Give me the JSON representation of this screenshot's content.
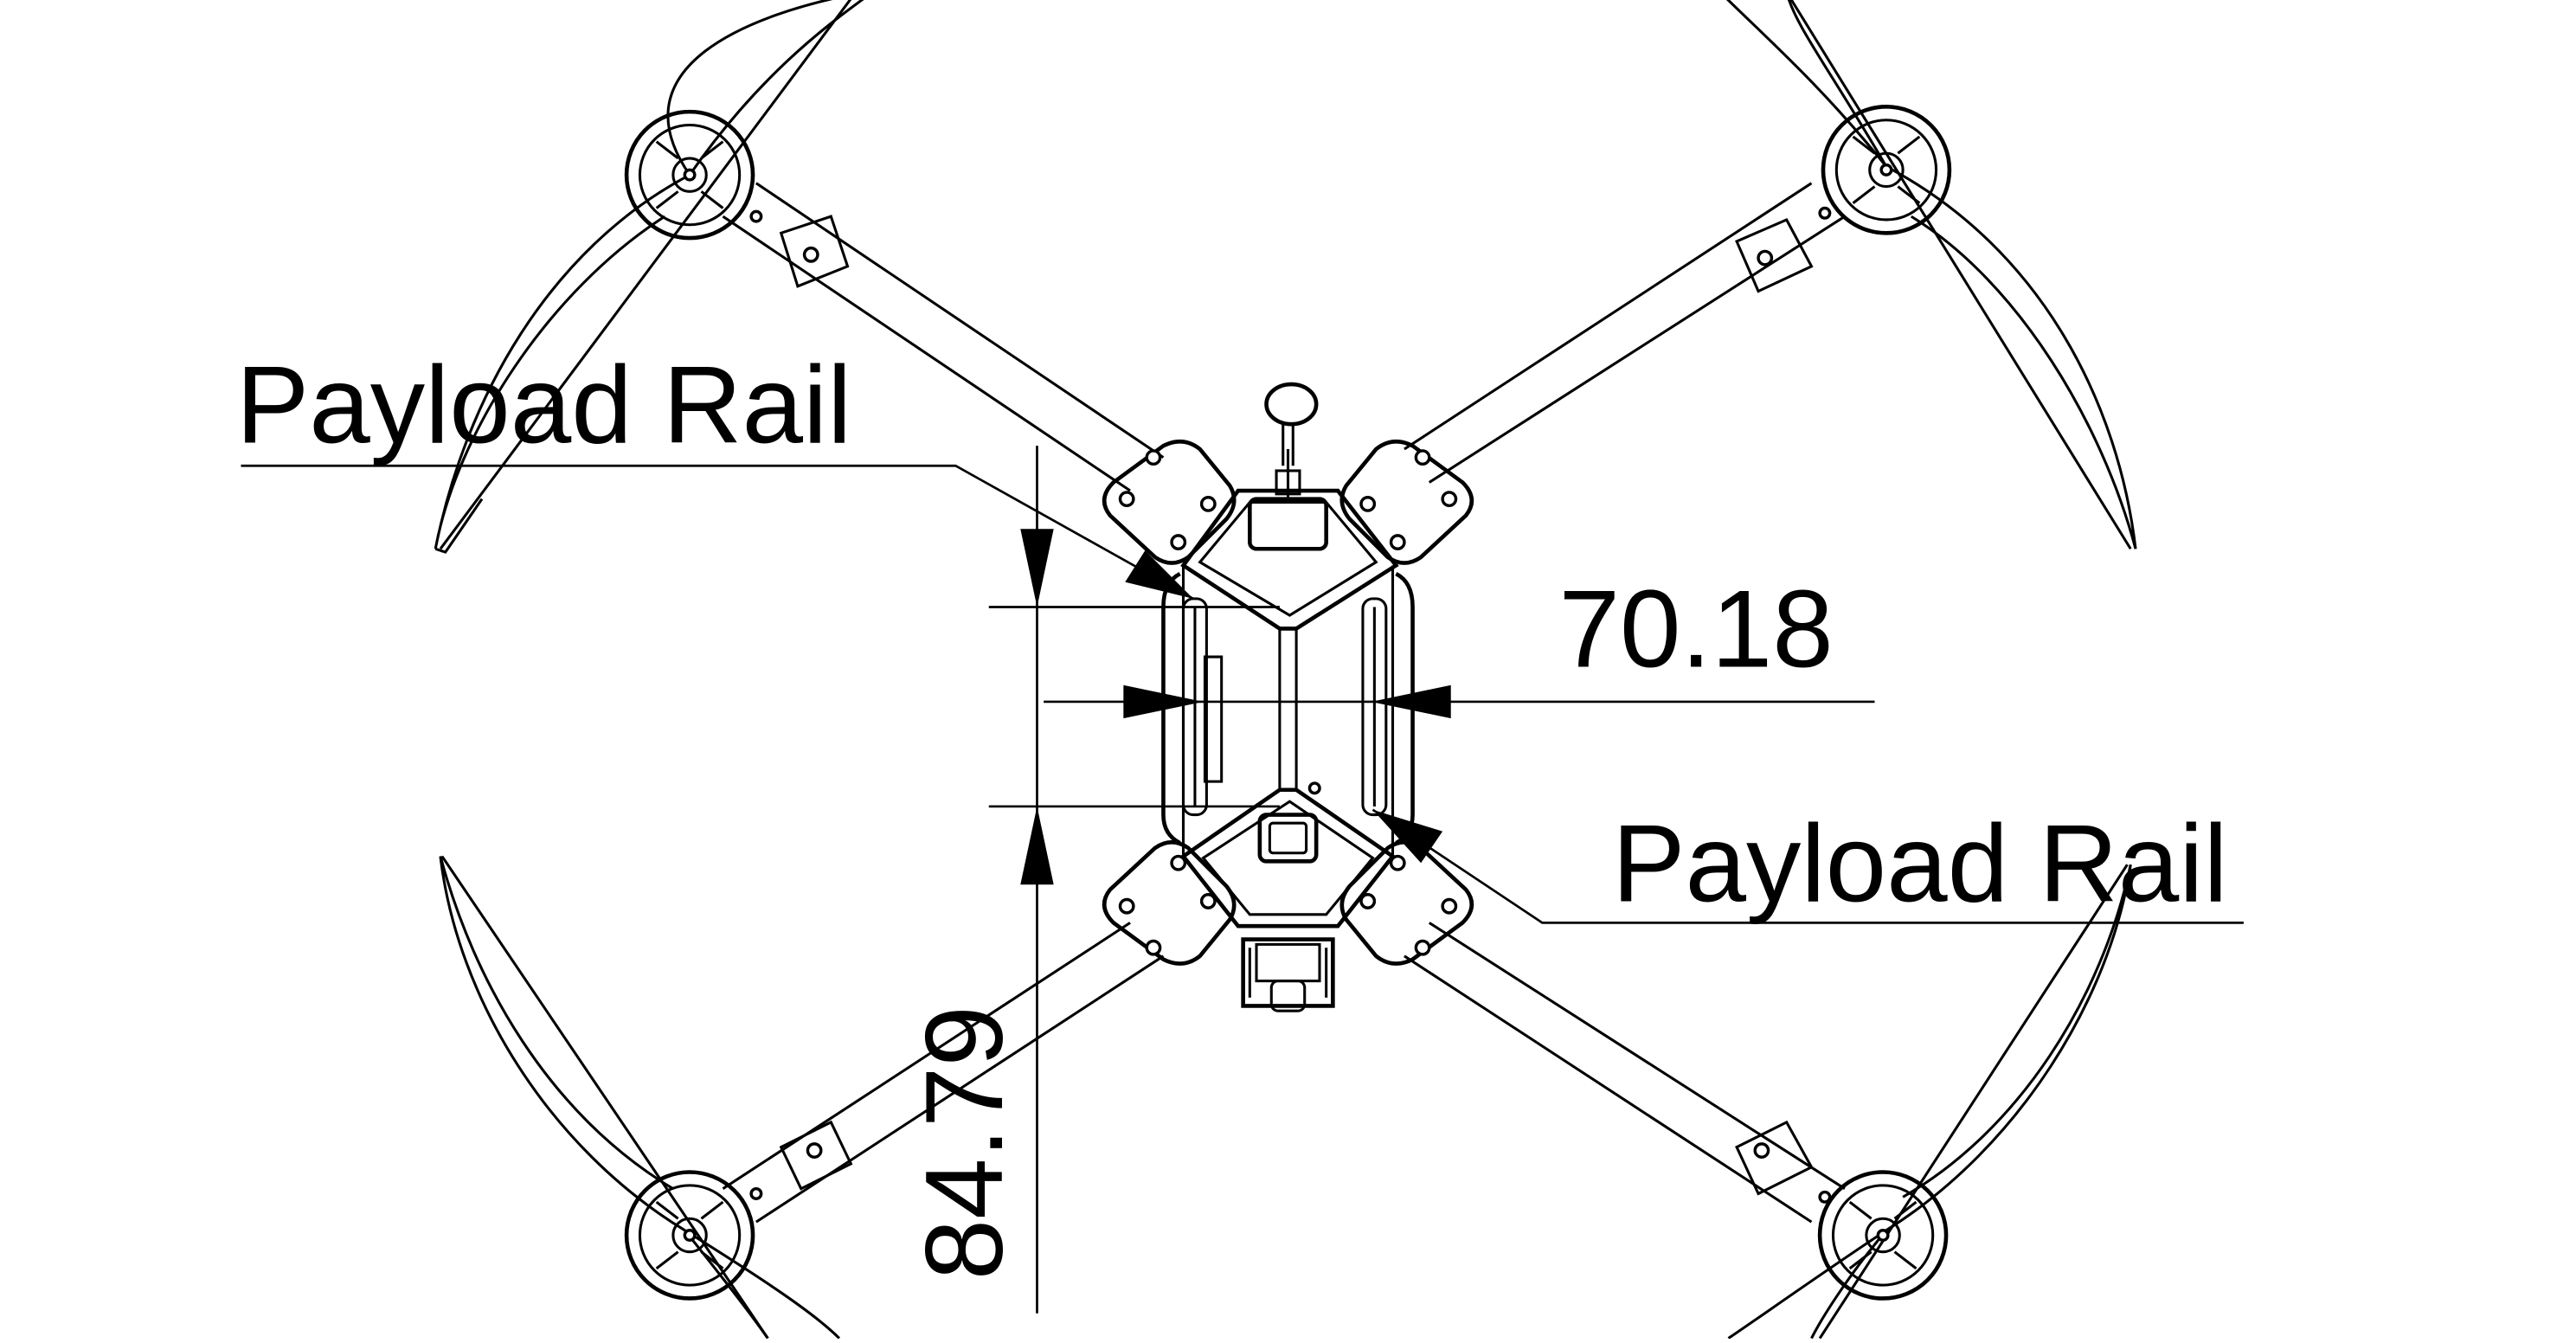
{
  "diagram": {
    "labels": {
      "payload_rail_left": "Payload Rail",
      "payload_rail_right": "Payload Rail"
    },
    "dimensions": {
      "width": "70.18",
      "height": "84.79"
    }
  }
}
